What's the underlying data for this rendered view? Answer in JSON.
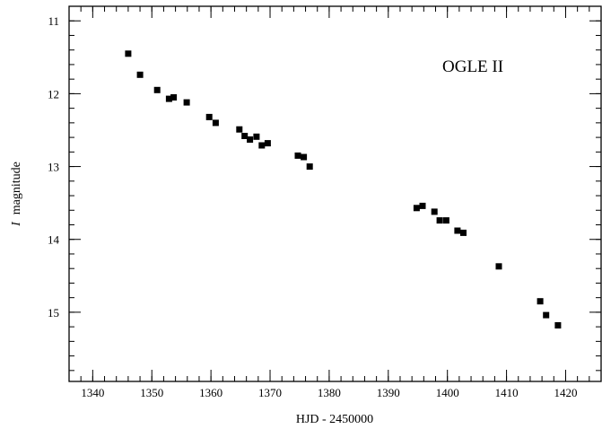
{
  "chart_data": {
    "type": "scatter",
    "xlabel": "HJD - 2450000",
    "ylabel_italic": "I",
    "ylabel_rest": "magnitude",
    "annotation": "OGLE II",
    "xlim": [
      1336,
      1426
    ],
    "ylim": [
      10.8,
      15.95
    ],
    "y_inverted": true,
    "x_ticks": [
      1340,
      1350,
      1360,
      1370,
      1380,
      1390,
      1400,
      1410,
      1420
    ],
    "y_ticks": [
      11,
      12,
      13,
      14,
      15
    ],
    "x_minor_step": 2,
    "y_minor_step": 0.2,
    "grid": false,
    "marker": "square",
    "marker_color": "#000000",
    "points": [
      {
        "x": 1346.0,
        "y": 11.45
      },
      {
        "x": 1348.0,
        "y": 11.74
      },
      {
        "x": 1350.9,
        "y": 11.95
      },
      {
        "x": 1352.9,
        "y": 12.07
      },
      {
        "x": 1353.7,
        "y": 12.05
      },
      {
        "x": 1355.9,
        "y": 12.12
      },
      {
        "x": 1359.7,
        "y": 12.32
      },
      {
        "x": 1360.8,
        "y": 12.4
      },
      {
        "x": 1364.8,
        "y": 12.49
      },
      {
        "x": 1365.7,
        "y": 12.58
      },
      {
        "x": 1366.6,
        "y": 12.63
      },
      {
        "x": 1367.7,
        "y": 12.59
      },
      {
        "x": 1368.6,
        "y": 12.71
      },
      {
        "x": 1369.6,
        "y": 12.68
      },
      {
        "x": 1374.7,
        "y": 12.85
      },
      {
        "x": 1375.7,
        "y": 12.87
      },
      {
        "x": 1376.7,
        "y": 13.0
      },
      {
        "x": 1394.8,
        "y": 13.57
      },
      {
        "x": 1395.8,
        "y": 13.54
      },
      {
        "x": 1397.8,
        "y": 13.62
      },
      {
        "x": 1398.7,
        "y": 13.74
      },
      {
        "x": 1399.8,
        "y": 13.74
      },
      {
        "x": 1401.7,
        "y": 13.88
      },
      {
        "x": 1402.7,
        "y": 13.91
      },
      {
        "x": 1408.7,
        "y": 14.37
      },
      {
        "x": 1415.7,
        "y": 14.85
      },
      {
        "x": 1416.7,
        "y": 15.04
      },
      {
        "x": 1418.7,
        "y": 15.18
      }
    ]
  }
}
